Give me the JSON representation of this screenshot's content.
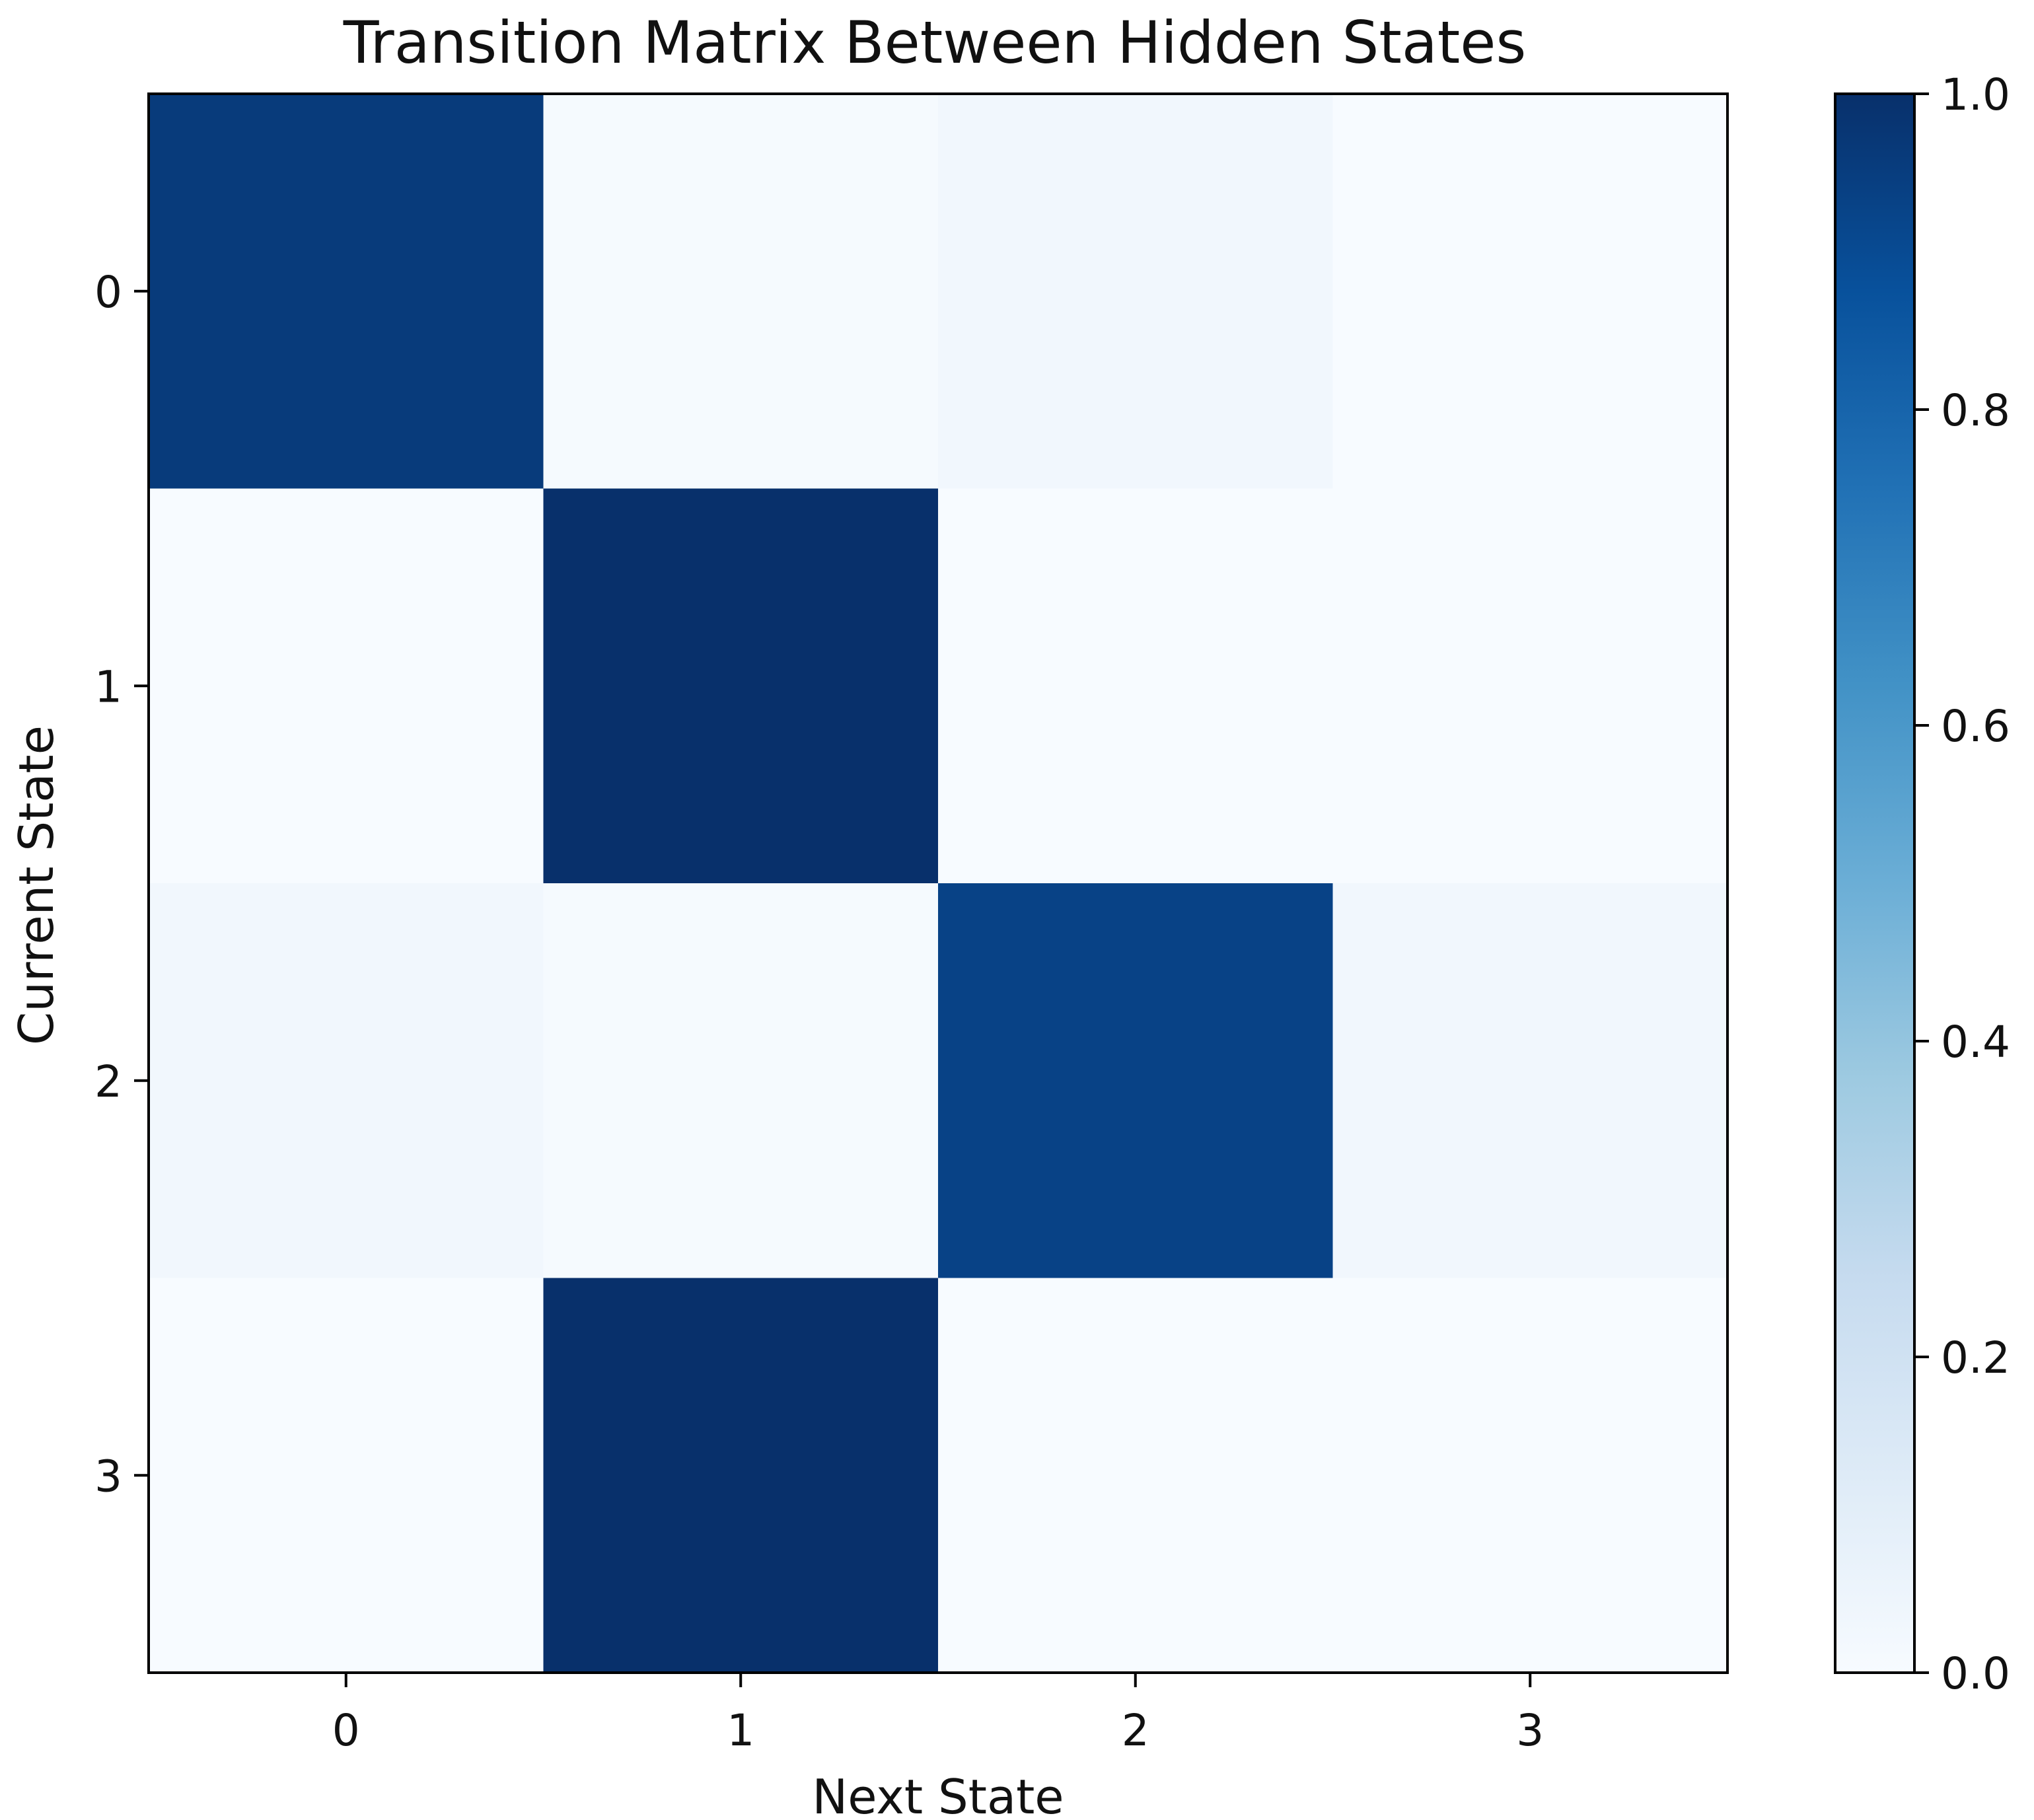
{
  "chart_data": {
    "type": "heatmap",
    "title": "Transition Matrix Between Hidden States",
    "xlabel": "Next State",
    "ylabel": "Current State",
    "x_categories": [
      "0",
      "1",
      "2",
      "3"
    ],
    "y_categories": [
      "0",
      "1",
      "2",
      "3"
    ],
    "values": [
      [
        0.96,
        0.01,
        0.03,
        0.0
      ],
      [
        0.0,
        1.0,
        0.0,
        0.0
      ],
      [
        0.03,
        0.01,
        0.93,
        0.03
      ],
      [
        0.0,
        1.0,
        0.0,
        0.0
      ]
    ],
    "colormap": "Blues",
    "colorbar": {
      "range": [
        0.0,
        1.0
      ],
      "ticks": [
        "0.0",
        "0.2",
        "0.4",
        "0.6",
        "0.8",
        "1.0"
      ]
    },
    "colors": {
      "low": "#f7fbff",
      "high": "#08306b",
      "frame": "#000000"
    }
  }
}
